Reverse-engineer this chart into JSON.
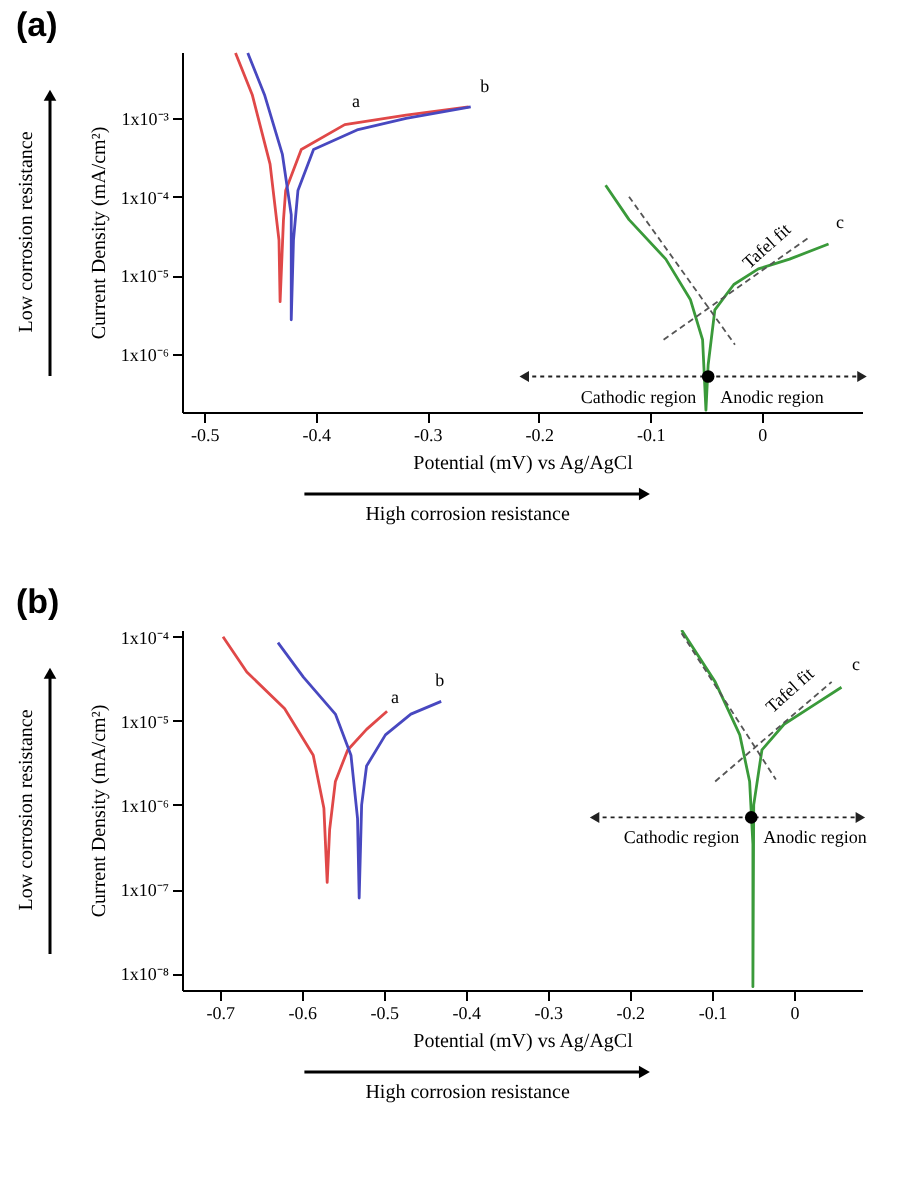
{
  "chart_data": [
    {
      "type": "line",
      "title": "(a)",
      "xlabel": "Potential (mV)  vs Ag/AgCl",
      "ylabel": "Current Density (mA/cm²)",
      "log": true,
      "grid": false,
      "marker": "none",
      "xlim": [
        -0.52,
        0.09
      ],
      "ylim": [
        1.8e-07,
        0.007
      ],
      "xticks": [
        -0.5,
        -0.4,
        -0.3,
        -0.2,
        -0.1,
        0
      ],
      "yticks": [
        {
          "value": 0.001,
          "label": "1x10⁻³"
        },
        {
          "value": 0.0001,
          "label": "1x10⁻⁴"
        },
        {
          "value": 1e-05,
          "label": "1x10⁻⁵"
        },
        {
          "value": 1e-06,
          "label": "1x10⁻⁶"
        }
      ],
      "series": [
        {
          "color": "#e04848",
          "line_style": "solid",
          "x": [
            -0.472,
            -0.457,
            -0.441,
            -0.433,
            -0.432,
            -0.429,
            -0.427,
            -0.413,
            -0.374,
            -0.319,
            -0.263
          ],
          "values": [
            0.0068,
            0.002,
            0.00026,
            2.8e-05,
            4.6e-06,
            5e-05,
            0.00012,
            0.0004,
            0.00083,
            0.0011,
            0.0014
          ]
        },
        {
          "color": "#4848c0",
          "line_style": "solid",
          "x": [
            -0.461,
            -0.446,
            -0.43,
            -0.422,
            -0.422,
            -0.42,
            -0.416,
            -0.402,
            -0.363,
            -0.319,
            -0.261
          ],
          "values": [
            0.0068,
            0.002,
            0.00035,
            5.9e-05,
            2.7e-06,
            2.8e-05,
            0.00012,
            0.0004,
            0.00071,
            0.001,
            0.0014
          ]
        },
        {
          "color": "#3a9a3a",
          "line_style": "solid",
          "x": [
            -0.14,
            -0.119,
            -0.086,
            -0.064,
            -0.053,
            -0.05,
            -0.048,
            -0.042,
            -0.025,
            -0.003,
            0.025,
            0.06
          ],
          "values": [
            0.00014,
            5.1e-05,
            1.6e-05,
            4.9e-06,
            1.5e-06,
            1.9e-07,
            7.2e-07,
            3.6e-06,
            7.6e-06,
            1.2e-05,
            1.6e-05,
            2.5e-05
          ]
        },
        {
          "color": "#555555",
          "line_style": "dashed",
          "x": [
            -0.119,
            -0.024
          ],
          "values": [
            0.0001,
            1.3e-06
          ]
        },
        {
          "color": "#555555",
          "line_style": "dashed",
          "x": [
            -0.088,
            0.042
          ],
          "values": [
            1.5e-06,
            3e-05
          ]
        },
        {
          "color": "#222222",
          "line_style": "dotted",
          "marker": "triangle",
          "x": [
            -0.213,
            0.09
          ],
          "values": [
            5.1e-07,
            5.1e-07
          ]
        },
        {
          "type": "scatter",
          "marker": "circle",
          "color": "#000000",
          "x": [
            -0.048
          ],
          "values": [
            5.1e-07
          ]
        }
      ],
      "annotations": [
        "Low corrosion resistance",
        "High corrosion resistance",
        "Tafel fit",
        "Cathodic region",
        "Anodic region",
        {
          "text": "a",
          "x": -0.371,
          "y": 0.0011
        },
        {
          "text": "b",
          "x": -0.256,
          "y": 0.0017
        },
        {
          "text": "c",
          "x": 0.063,
          "y": 3.2e-05
        }
      ]
    },
    {
      "type": "line",
      "title": "(b)",
      "xlabel": "Potential (mV)  vs Ag/AgCl",
      "ylabel": "Current Density (mA/cm²)",
      "log": true,
      "grid": false,
      "marker": "none",
      "xlim": [
        -0.746,
        0.083
      ],
      "ylim": [
        6.3e-09,
        0.00012
      ],
      "xticks": [
        -0.7,
        -0.6,
        -0.5,
        -0.4,
        -0.3,
        -0.2,
        -0.1,
        0
      ],
      "yticks": [
        {
          "value": 0.0001,
          "label": "1x10⁻⁴"
        },
        {
          "value": 1e-05,
          "label": "1x10⁻⁵"
        },
        {
          "value": 1e-06,
          "label": "1x10⁻⁶"
        },
        {
          "value": 1e-07,
          "label": "1x10⁻⁷"
        },
        {
          "value": 1e-08,
          "label": "1x10⁻⁸"
        }
      ],
      "series": [
        {
          "color": "#e04848",
          "line_style": "solid",
          "x": [
            -0.696,
            -0.667,
            -0.621,
            -0.586,
            -0.573,
            -0.569,
            -0.566,
            -0.559,
            -0.544,
            -0.521,
            -0.496
          ],
          "values": [
            0.0001,
            3.8e-05,
            1.4e-05,
            3.9e-06,
            9.1e-07,
            1.2e-07,
            5.1e-07,
            1.9e-06,
            4.5e-06,
            7.9e-06,
            1.3e-05
          ]
        },
        {
          "color": "#4848c0",
          "line_style": "solid",
          "x": [
            -0.629,
            -0.598,
            -0.559,
            -0.54,
            -0.532,
            -0.53,
            -0.527,
            -0.521,
            -0.498,
            -0.467,
            -0.43
          ],
          "values": [
            8.5e-05,
            3.3e-05,
            1.2e-05,
            3.9e-06,
            6.9e-07,
            7.8e-08,
            1e-06,
            2.9e-06,
            6.8e-06,
            1.2e-05,
            1.7e-05
          ]
        },
        {
          "color": "#3a9a3a",
          "line_style": "solid",
          "x": [
            -0.137,
            -0.096,
            -0.066,
            -0.054,
            -0.05,
            -0.05,
            -0.049,
            -0.039,
            -0.012,
            0.027,
            0.058
          ],
          "values": [
            0.00012,
            2.9e-05,
            6.8e-06,
            1.9e-06,
            3.4e-07,
            6.9e-09,
            1e-06,
            4.5e-06,
            9.1e-06,
            1.6e-05,
            2.5e-05
          ]
        },
        {
          "color": "#555555",
          "line_style": "dashed",
          "x": [
            -0.137,
            -0.022
          ],
          "values": [
            0.00011,
            2e-06
          ]
        },
        {
          "color": "#555555",
          "line_style": "dashed",
          "x": [
            -0.096,
            0.046
          ],
          "values": [
            1.9e-06,
            2.9e-05
          ]
        },
        {
          "color": "#222222",
          "line_style": "dotted",
          "marker": "triangle",
          "x": [
            -0.243,
            0.081
          ],
          "values": [
            7.1e-07,
            7.1e-07
          ]
        },
        {
          "type": "scatter",
          "marker": "circle",
          "color": "#000000",
          "x": [
            -0.052
          ],
          "values": [
            7.1e-07
          ]
        }
      ],
      "annotations": [
        "Low corrosion resistance",
        "High corrosion resistance",
        "Tafel fit",
        "Cathodic region",
        "Anodic region",
        {
          "text": "a",
          "x": -0.496,
          "y": 1.3e-05
        },
        {
          "text": "b",
          "x": -0.442,
          "y": 2.1e-05
        },
        {
          "text": "c",
          "x": 0.066,
          "y": 3.2e-05
        }
      ]
    }
  ]
}
